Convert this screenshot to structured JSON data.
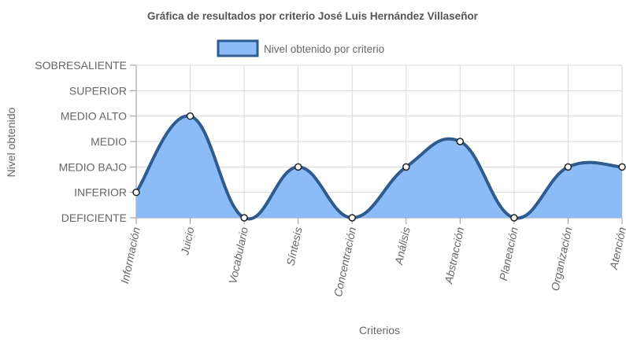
{
  "chart_data": {
    "type": "area",
    "title": "Gráfica de resultados por criterio José Luis Hernández Villaseñor",
    "xlabel": "Criterios",
    "ylabel": "Nivel obtenido",
    "y_levels": [
      "DEFICIENTE",
      "INFERIOR",
      "MEDIO BAJO",
      "MEDIO",
      "MEDIO ALTO",
      "SUPERIOR",
      "SOBRESALIENTE"
    ],
    "ylim": [
      0,
      6
    ],
    "categories": [
      "Información",
      "Juicio",
      "Vocabulario",
      "Síntesis",
      "Concentración",
      "Análisis",
      "Abstracción",
      "Planeación",
      "Organización",
      "Atención"
    ],
    "series": [
      {
        "name": "Nivel obtenido por criterio",
        "values": [
          1,
          4,
          0,
          2,
          0,
          2,
          3,
          0,
          2,
          2
        ]
      }
    ],
    "legend_position": "top",
    "grid": true,
    "colors": {
      "fill": "#8bbcf7",
      "stroke": "#2f5b8f",
      "grid": "#d9d9d9",
      "point_fill": "#ffffff",
      "point_stroke": "#222222"
    }
  }
}
